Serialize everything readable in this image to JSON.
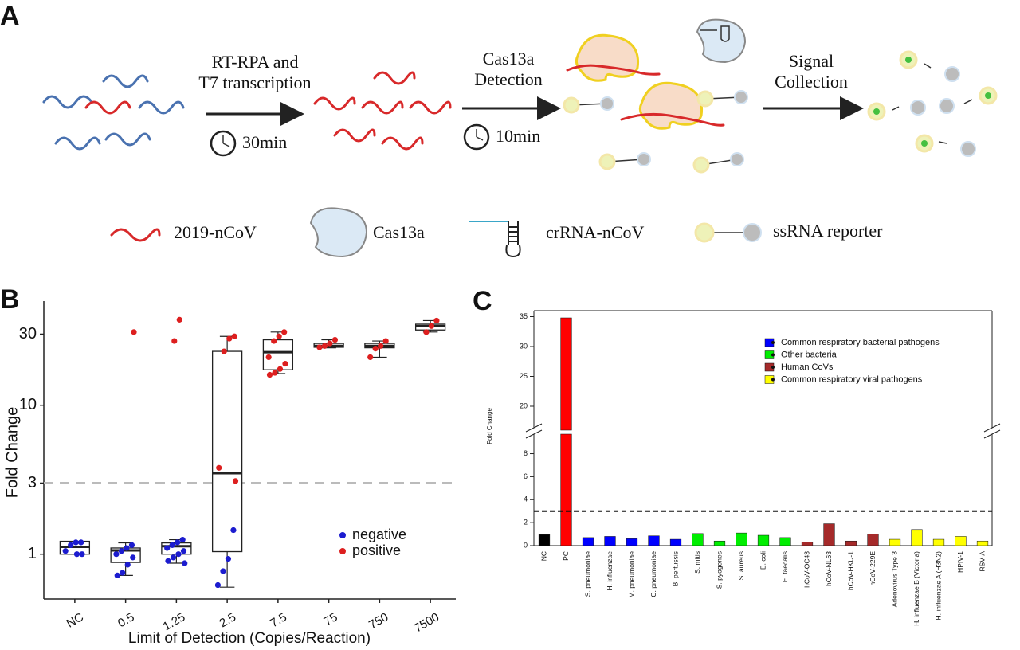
{
  "diagram": {
    "panel": "A",
    "step1": [
      "RT-RPA and",
      "T7 transcription"
    ],
    "step1_time": "30min",
    "step2": [
      "Cas13a",
      "Detection"
    ],
    "step2_time": "10min",
    "step3": [
      "Signal",
      "Collection"
    ],
    "legend": [
      "2019-nCoV",
      "Cas13a",
      "crRNA-nCoV",
      "ssRNA  reporter"
    ]
  },
  "chart_data": [
    {
      "type": "box",
      "panel": "B",
      "x_label": "Limit of Detection (Copies/Reaction)",
      "y_label": "Fold Change",
      "log_scale": true,
      "ylim": [
        0.5,
        50
      ],
      "yticks": [
        1,
        3,
        10,
        30
      ],
      "threshold": 3,
      "legend": "bottom-right",
      "categories": [
        "NC",
        "0.5",
        "1.25",
        "2.5",
        "7.5",
        "75",
        "750",
        "7500"
      ],
      "boxes": [
        {
          "min": 1.0,
          "q1": 1.0,
          "median": 1.12,
          "q3": 1.22,
          "max": 1.22
        },
        {
          "min": 0.72,
          "q1": 0.88,
          "median": 1.06,
          "q3": 1.1,
          "max": 1.19
        },
        {
          "min": 0.87,
          "q1": 1.0,
          "median": 1.13,
          "q3": 1.19,
          "max": 1.25
        },
        {
          "min": 0.6,
          "q1": 1.04,
          "median": 3.5,
          "q3": 23,
          "max": 29
        },
        {
          "min": 16.3,
          "q1": 17.3,
          "median": 22.7,
          "q3": 27.5,
          "max": 31
        },
        {
          "min": 24.3,
          "q1": 24.5,
          "median": 25,
          "q3": 26,
          "max": 27.5
        },
        {
          "min": 21,
          "q1": 24.3,
          "median": 25,
          "q3": 26,
          "max": 27
        },
        {
          "min": 31,
          "q1": 32,
          "median": 34,
          "q3": 35,
          "max": 37
        }
      ],
      "points": [
        {
          "name": "negative",
          "color": "#1c1ccf",
          "categories": [
            "NC",
            "NC",
            "NC",
            "NC",
            "NC",
            "NC",
            "0.5",
            "0.5",
            "0.5",
            "0.5",
            "0.5",
            "0.5",
            "0.5",
            "0.5",
            "1.25",
            "1.25",
            "1.25",
            "1.25",
            "1.25",
            "1.25",
            "1.25",
            "1.25",
            "1.25",
            "2.5",
            "2.5",
            "2.5",
            "2.5"
          ],
          "values": [
            1.2,
            1.2,
            1.15,
            1.05,
            1.0,
            1.0,
            1.15,
            1.1,
            1.05,
            1.0,
            0.95,
            0.85,
            0.75,
            0.72,
            1.25,
            1.2,
            1.15,
            1.1,
            1.05,
            1.0,
            0.95,
            0.9,
            0.87,
            1.45,
            0.93,
            0.77,
            0.62
          ]
        },
        {
          "name": "positive",
          "color": "#dd1f1f",
          "categories": [
            "0.5",
            "1.25",
            "1.25",
            "2.5",
            "2.5",
            "2.5",
            "2.5",
            "2.5",
            "7.5",
            "7.5",
            "7.5",
            "7.5",
            "7.5",
            "7.5",
            "7.5",
            "7.5",
            "75",
            "75",
            "75",
            "75",
            "750",
            "750",
            "750",
            "750",
            "7500",
            "7500",
            "7500"
          ],
          "values": [
            31,
            37.5,
            27,
            29,
            28,
            23,
            3.8,
            3.1,
            31,
            29,
            27,
            21,
            19,
            17.5,
            16.5,
            16,
            27.5,
            26,
            25,
            24.5,
            27,
            25,
            24,
            21,
            37,
            34,
            31
          ]
        }
      ]
    },
    {
      "type": "bar",
      "panel": "C",
      "y_label": "Fold Change",
      "threshold": 3,
      "legend": "top-right",
      "lower_ylim": [
        0,
        9.7
      ],
      "lower_yticks": [
        0,
        2,
        4,
        6,
        8
      ],
      "upper_ylim": [
        16,
        36
      ],
      "upper_yticks": [
        20,
        25,
        30,
        35
      ],
      "categories": [
        "NC",
        "PC",
        "S. pneumoniae",
        "H. influenzae",
        "M. pneumoniae",
        "C. pneumoniae",
        "B. pertussis",
        "S. mitis",
        "S. pyogenes",
        "S. aureus",
        "E. coli",
        "E. faecalis",
        "hCoV-OC43",
        "hCoV-NL63",
        "hCoV-HKU-1",
        "hCoV-229E",
        "Adenovirus Type 3",
        "H. influenzae B (Victoria)",
        "H. influenzae A (H3N2)",
        "HPIV-1",
        "RSV-A"
      ],
      "values": [
        0.95,
        34.8,
        0.7,
        0.8,
        0.6,
        0.85,
        0.55,
        1.05,
        0.4,
        1.1,
        0.9,
        0.7,
        0.3,
        1.9,
        0.4,
        1.0,
        0.55,
        1.4,
        0.55,
        0.8,
        0.4
      ],
      "colors": [
        "#000000",
        "#ff0000",
        "#0000ff",
        "#0000ff",
        "#0000ff",
        "#0000ff",
        "#0000ff",
        "#00ee00",
        "#00ee00",
        "#00ee00",
        "#00ee00",
        "#00ee00",
        "#a52a2a",
        "#a52a2a",
        "#a52a2a",
        "#a52a2a",
        "#ffff00",
        "#ffff00",
        "#ffff00",
        "#ffff00",
        "#ffff00"
      ],
      "series": [
        {
          "name": "Common respiratory bacterial pathogens",
          "color": "#0000ff"
        },
        {
          "name": "Other bacteria",
          "color": "#00ee00"
        },
        {
          "name": "Human CoVs",
          "color": "#a52a2a"
        },
        {
          "name": "Common respiratory viral pathogens",
          "color": "#ffff00"
        }
      ]
    }
  ]
}
